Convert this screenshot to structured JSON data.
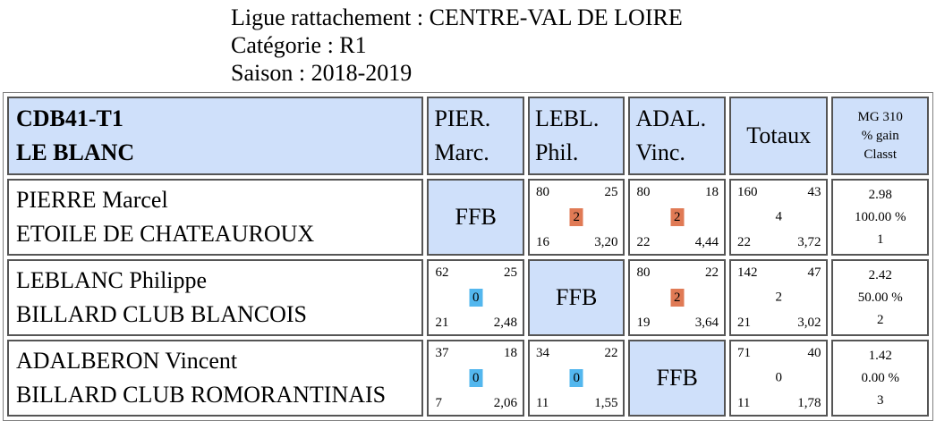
{
  "header": {
    "line1": "Ligue rattachement : CENTRE-VAL DE LOIRE",
    "line2": "Catégorie : R1",
    "line3": "Saison : 2018-2019"
  },
  "table": {
    "team_code": "CDB41-T1",
    "team_name": "LE BLANC",
    "col1_a": "PIER.",
    "col1_b": "Marc.",
    "col2_a": "LEBL.",
    "col2_b": "Phil.",
    "col3_a": "ADAL.",
    "col3_b": "Vinc.",
    "totals": "Totaux",
    "mg_a": "MG 310",
    "mg_b": "% gain",
    "mg_c": "Classt"
  },
  "rows": [
    {
      "name": "PIERRE Marcel",
      "club": "ETOILE DE CHATEAUROUX",
      "ffb": "FFB",
      "m2": {
        "pts_made": "80",
        "innings": "25",
        "points": "2",
        "best": "16",
        "avg": "3,20"
      },
      "m3": {
        "pts_made": "80",
        "innings": "18",
        "points": "2",
        "best": "22",
        "avg": "4,44"
      },
      "tot": {
        "pts_made": "160",
        "innings": "43",
        "points": "4",
        "best": "22",
        "avg": "3,72"
      },
      "stats": {
        "mg": "2.98",
        "pct": "100.00 %",
        "rank": "1"
      }
    },
    {
      "name": "LEBLANC Philippe",
      "club": "BILLARD CLUB BLANCOIS",
      "ffb": "FFB",
      "m1": {
        "pts_made": "62",
        "innings": "25",
        "points": "0",
        "best": "21",
        "avg": "2,48"
      },
      "m3": {
        "pts_made": "80",
        "innings": "22",
        "points": "2",
        "best": "19",
        "avg": "3,64"
      },
      "tot": {
        "pts_made": "142",
        "innings": "47",
        "points": "2",
        "best": "21",
        "avg": "3,02"
      },
      "stats": {
        "mg": "2.42",
        "pct": "50.00 %",
        "rank": "2"
      }
    },
    {
      "name": "ADALBERON Vincent",
      "club": "BILLARD CLUB ROMORANTINAIS",
      "ffb": "FFB",
      "m1": {
        "pts_made": "37",
        "innings": "18",
        "points": "0",
        "best": "7",
        "avg": "2,06"
      },
      "m2": {
        "pts_made": "34",
        "innings": "22",
        "points": "0",
        "best": "11",
        "avg": "1,55"
      },
      "tot": {
        "pts_made": "71",
        "innings": "40",
        "points": "0",
        "best": "11",
        "avg": "1,78"
      },
      "stats": {
        "mg": "1.42",
        "pct": "0.00 %",
        "rank": "3"
      }
    }
  ],
  "colors": {
    "header_bg": "#cfe0fa",
    "win_badge": "#e07a55",
    "loss_badge": "#53b7ee"
  }
}
